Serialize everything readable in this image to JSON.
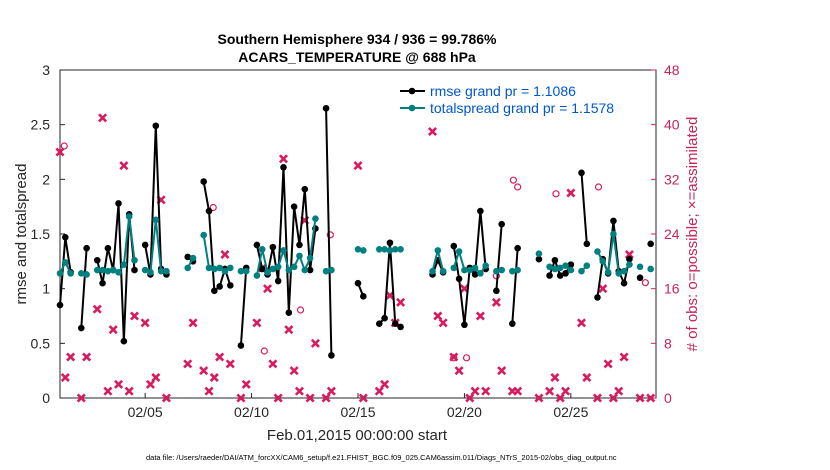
{
  "chart_data": {
    "type": "line",
    "title": "Southern Hemisphere 934 / 936 = 99.786%",
    "subtitle": "ACARS_TEMPERATURE @ 688 hPa",
    "xlabel": "Feb.01,2015 00:00:00 start",
    "ylabel": "rmse and totalspread",
    "ylabel_right": "# of obs: o=possible; ×=assimilated",
    "footer": "data file: /Users/raeder/DAI/ATM_forcXX/CAM6_setup/f.e21.FHIST_BGC.f09_025.CAM6assim.011/Diags_NTrS_2015-02/obs_diag_output.nc",
    "xlim": [
      1,
      29
    ],
    "ylim": [
      0,
      3
    ],
    "ylim_right": [
      0,
      48
    ],
    "x_ticks": [
      5,
      10,
      15,
      20,
      25
    ],
    "x_tick_labels": [
      "02/05",
      "02/10",
      "02/15",
      "02/20",
      "02/25"
    ],
    "y_ticks": [
      "0",
      "0.5",
      "1",
      "1.5",
      "2",
      "2.5",
      "3"
    ],
    "y_ticks_right": [
      "0",
      "8",
      "16",
      "24",
      "32",
      "40",
      "48"
    ],
    "legend_position": "top-right",
    "colors": {
      "rmse": "#000000",
      "spread": "#008080",
      "obs": "#d81b60",
      "legend_text": "#0057c8",
      "right_axis": "#c8245b"
    },
    "series": [
      {
        "name": "rmse grand pr = 1.1086",
        "x": [
          1.0,
          1.25,
          1.5,
          2.0,
          2.25,
          2.75,
          3.0,
          3.25,
          3.5,
          3.75,
          4.0,
          4.25,
          4.5,
          5.0,
          5.25,
          5.5,
          5.75,
          6.0,
          7.0,
          7.25,
          7.75,
          8.0,
          8.25,
          8.5,
          8.75,
          9.0,
          9.5,
          9.75,
          10.25,
          10.5,
          10.75,
          11.0,
          11.25,
          11.5,
          11.75,
          12.0,
          12.25,
          12.5,
          12.75,
          13.0,
          13.5,
          13.75,
          15.0,
          15.25,
          16.0,
          16.25,
          16.5,
          16.75,
          17.0,
          18.5,
          18.75,
          19.0,
          19.5,
          19.75,
          20.0,
          20.25,
          20.5,
          20.75,
          21.0,
          21.5,
          21.75,
          22.25,
          22.5,
          23.5,
          24.0,
          24.25,
          24.5,
          24.75,
          25.0,
          25.5,
          25.75,
          26.25,
          26.5,
          26.75,
          27.0,
          27.25,
          27.5,
          27.75,
          28.25,
          28.75
        ],
        "values": [
          0.85,
          1.47,
          1.15,
          0.64,
          1.37,
          1.26,
          1.05,
          1.37,
          1.17,
          1.78,
          0.52,
          1.68,
          1.17,
          1.4,
          1.13,
          2.49,
          1.18,
          1.13,
          1.29,
          1.25,
          1.98,
          1.71,
          0.98,
          1.02,
          1.18,
          1.03,
          0.48,
          1.19,
          1.4,
          1.18,
          1.13,
          1.38,
          1.07,
          2.11,
          0.78,
          1.75,
          1.4,
          1.91,
          1.17,
          1.55,
          2.65,
          0.39,
          1.05,
          0.93,
          0.68,
          0.73,
          1.42,
          0.68,
          0.65,
          1.13,
          1.26,
          1.15,
          1.39,
          1.09,
          0.67,
          1.19,
          1.13,
          1.71,
          1.18,
          0.98,
          1.59,
          0.68,
          1.37,
          1.27,
          1.12,
          1.26,
          1.12,
          1.14,
          1.22,
          2.06,
          1.41,
          0.92,
          1.27,
          1.14,
          1.62,
          1.16,
          1.05,
          1.27,
          1.1,
          1.41
        ]
      },
      {
        "name": "totalspread grand pr = 1.1578",
        "x": [
          1.0,
          1.25,
          1.5,
          2.0,
          2.25,
          2.75,
          3.0,
          3.25,
          3.5,
          3.75,
          4.0,
          4.25,
          4.5,
          5.0,
          5.25,
          5.5,
          5.75,
          6.0,
          7.0,
          7.25,
          7.75,
          8.0,
          8.25,
          8.5,
          8.75,
          9.0,
          9.5,
          9.75,
          10.25,
          10.5,
          10.75,
          11.0,
          11.25,
          11.5,
          11.75,
          12.0,
          12.25,
          12.5,
          12.75,
          13.0,
          13.5,
          13.75,
          15.0,
          15.25,
          16.0,
          16.25,
          16.5,
          16.75,
          17.0,
          18.5,
          18.75,
          19.0,
          19.5,
          19.75,
          20.0,
          20.25,
          20.5,
          20.75,
          21.0,
          21.5,
          21.75,
          22.25,
          22.5,
          23.5,
          24.0,
          24.25,
          24.5,
          24.75,
          25.0,
          25.5,
          25.75,
          26.25,
          26.5,
          26.75,
          27.0,
          27.25,
          27.5,
          27.75,
          28.25,
          28.75
        ],
        "values": [
          1.14,
          1.24,
          1.14,
          1.14,
          1.13,
          1.17,
          1.17,
          1.16,
          1.17,
          1.15,
          1.22,
          1.66,
          1.26,
          1.17,
          1.15,
          1.63,
          1.16,
          1.16,
          1.19,
          1.28,
          1.49,
          1.19,
          1.18,
          1.19,
          1.16,
          1.19,
          1.16,
          1.16,
          1.12,
          1.36,
          1.15,
          1.18,
          1.2,
          1.35,
          1.17,
          1.2,
          1.3,
          1.17,
          1.28,
          1.64,
          1.16,
          1.17,
          1.36,
          1.35,
          1.36,
          1.36,
          1.35,
          1.36,
          1.36,
          1.16,
          1.35,
          1.16,
          1.19,
          1.34,
          1.17,
          1.17,
          1.19,
          1.14,
          1.21,
          1.16,
          1.17,
          1.16,
          1.17,
          1.32,
          1.2,
          1.18,
          1.19,
          1.21,
          1.17,
          1.16,
          1.21,
          1.34,
          1.25,
          1.15,
          1.5,
          1.14,
          1.16,
          1.22,
          1.2,
          1.18
        ]
      },
      {
        "name": "obs possible",
        "x": [
          1.2,
          8.2,
          10.6,
          12.3,
          13.7,
          19.5,
          20.1,
          21.5,
          22.3,
          22.5,
          24.3,
          26.3,
          28.5
        ],
        "values": [
          36,
          27,
          6,
          12,
          23,
          5,
          5,
          17,
          31,
          30,
          29,
          30,
          16
        ]
      },
      {
        "name": "obs assimilated",
        "x": [
          1.0,
          1.25,
          1.5,
          2.0,
          2.25,
          2.75,
          3.0,
          3.25,
          3.5,
          3.75,
          4.0,
          4.25,
          4.5,
          5.0,
          5.25,
          5.5,
          5.75,
          6.0,
          7.0,
          7.25,
          7.75,
          8.0,
          8.25,
          8.5,
          8.75,
          9.0,
          9.5,
          9.75,
          10.25,
          10.5,
          10.75,
          11.0,
          11.25,
          11.5,
          11.75,
          12.0,
          12.25,
          12.5,
          12.75,
          13.0,
          13.5,
          13.75,
          15.0,
          15.25,
          16.0,
          16.25,
          16.5,
          16.75,
          17.0,
          18.5,
          18.75,
          19.0,
          19.5,
          19.75,
          20.0,
          20.25,
          20.5,
          20.75,
          21.0,
          21.5,
          21.75,
          22.25,
          22.5,
          23.5,
          24.0,
          24.25,
          24.5,
          24.75,
          25.0,
          25.5,
          25.75,
          26.25,
          26.5,
          26.75,
          27.0,
          27.25,
          27.5,
          27.75,
          28.25,
          28.75
        ],
        "values": [
          36,
          3,
          6,
          0,
          6,
          13,
          41,
          1,
          10,
          2,
          34,
          1,
          12,
          11,
          2,
          3,
          29,
          0,
          5,
          11,
          4,
          1,
          3,
          6,
          21,
          5,
          0,
          2,
          11,
          19,
          16,
          5,
          0,
          35,
          10,
          4,
          1,
          26,
          0,
          8,
          0,
          1,
          34,
          0,
          1,
          2,
          15,
          11,
          14,
          39,
          12,
          11,
          6,
          4,
          16,
          0,
          1,
          12,
          1,
          14,
          4,
          1,
          1,
          0,
          1,
          3,
          0,
          1,
          30,
          11,
          3,
          0,
          16,
          5,
          0,
          1,
          6,
          21,
          0,
          0
        ]
      }
    ]
  }
}
